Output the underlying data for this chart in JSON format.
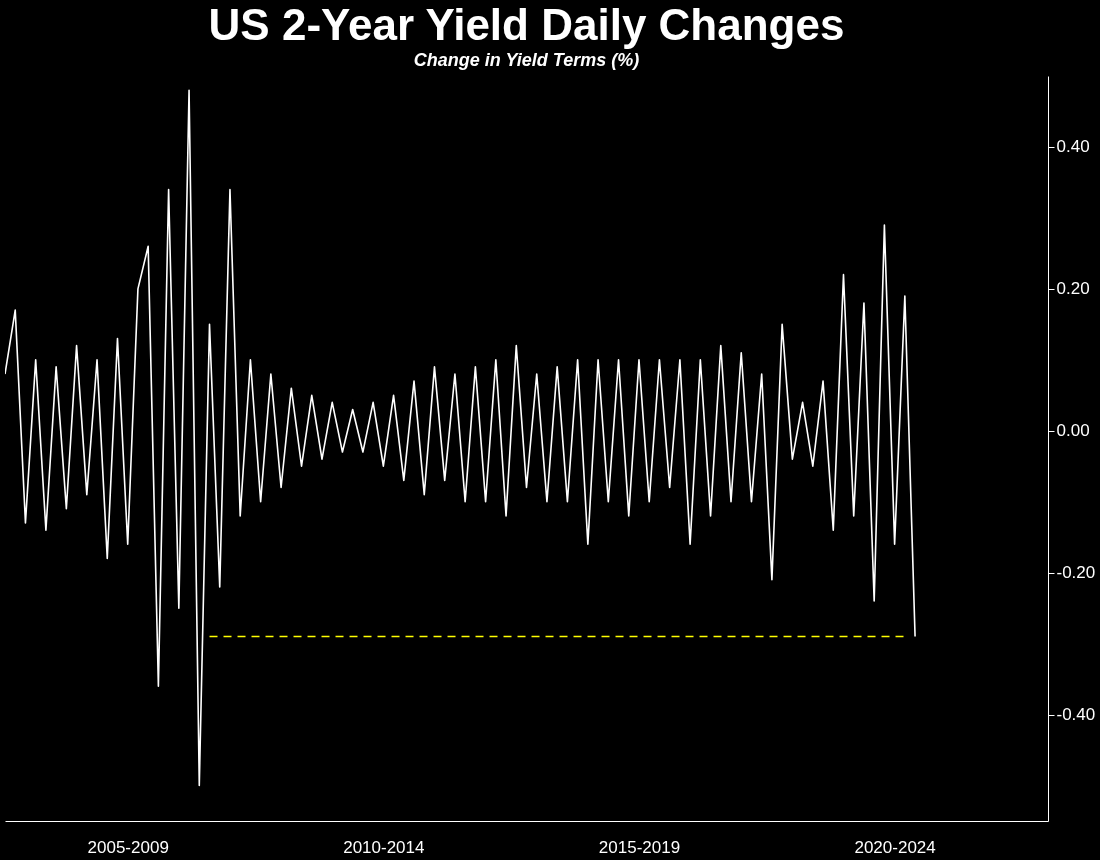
{
  "chart_data": {
    "type": "line",
    "title": "US 2-Year Yield Daily Changes",
    "subtitle": "Change in Yield Terms (%)",
    "categories": [
      null,
      null,
      null,
      null,
      null,
      null,
      null,
      null,
      null,
      null,
      null,
      null,
      "2005-2009",
      null,
      null,
      null,
      null,
      null,
      null,
      null,
      null,
      null,
      null,
      null,
      null,
      null,
      null,
      null,
      null,
      null,
      null,
      null,
      null,
      null,
      null,
      null,
      null,
      "2010-2014",
      null,
      null,
      null,
      null,
      null,
      null,
      null,
      null,
      null,
      null,
      null,
      null,
      null,
      null,
      null,
      null,
      null,
      null,
      null,
      null,
      null,
      null,
      null,
      null,
      "2015-2019",
      null,
      null,
      null,
      null,
      null,
      null,
      null,
      null,
      null,
      null,
      null,
      null,
      null,
      null,
      null,
      null,
      null,
      null,
      null,
      null,
      null,
      null,
      null,
      null,
      "2020-2024",
      null,
      null,
      null,
      null,
      null,
      null,
      null,
      null,
      null,
      null,
      null,
      null,
      null,
      null,
      null
    ],
    "ylim": [
      -0.55,
      0.5
    ],
    "yticks": [
      {
        "value": 0.4,
        "label": "0.40"
      },
      {
        "value": 0.2,
        "label": "0.20"
      },
      {
        "value": 0,
        "label": "0.00"
      },
      {
        "value": -0.2,
        "label": "-0.20"
      },
      {
        "value": -0.4,
        "label": "-0.40"
      }
    ],
    "grid": false,
    "series": [
      {
        "color": "#ffffff",
        "line_style": "solid",
        "values": [
          0.08,
          0.17,
          -0.13,
          0.1,
          -0.14,
          0.09,
          -0.11,
          0.12,
          -0.09,
          0.1,
          -0.18,
          0.13,
          -0.16,
          0.2,
          0.26,
          -0.36,
          0.34,
          -0.25,
          0.48,
          -0.5,
          0.15,
          -0.22,
          0.34,
          -0.12,
          0.1,
          -0.1,
          0.08,
          -0.08,
          0.06,
          -0.05,
          0.05,
          -0.04,
          0.04,
          -0.03,
          0.03,
          -0.03,
          0.04,
          -0.05,
          0.05,
          -0.07,
          0.07,
          -0.09,
          0.09,
          -0.07,
          0.08,
          -0.1,
          0.09,
          -0.1,
          0.1,
          -0.12,
          0.12,
          -0.08,
          0.08,
          -0.1,
          0.09,
          -0.1,
          0.1,
          -0.16,
          0.1,
          -0.1,
          0.1,
          -0.12,
          0.1,
          -0.1,
          0.1,
          -0.08,
          0.1,
          -0.16,
          0.1,
          -0.12,
          0.12,
          -0.1,
          0.11,
          -0.1,
          0.08,
          -0.21,
          0.15,
          -0.04,
          0.04,
          -0.05,
          0.07,
          -0.14,
          0.22,
          -0.12,
          0.18,
          -0.24,
          0.29,
          -0.16,
          0.19,
          -0.29,
          null,
          null,
          null,
          null,
          null,
          null,
          null,
          null,
          null,
          null,
          null,
          null,
          null
        ]
      },
      {
        "color": "#ffff00",
        "line_style": "dashed",
        "values": [
          null,
          null,
          null,
          null,
          null,
          null,
          null,
          null,
          null,
          null,
          null,
          null,
          null,
          null,
          null,
          null,
          null,
          null,
          null,
          null,
          -0.29,
          -0.29,
          -0.29,
          -0.29,
          -0.29,
          -0.29,
          -0.29,
          -0.29,
          -0.29,
          -0.29,
          -0.29,
          -0.29,
          -0.29,
          -0.29,
          -0.29,
          -0.29,
          -0.29,
          -0.29,
          -0.29,
          -0.29,
          -0.29,
          -0.29,
          -0.29,
          -0.29,
          -0.29,
          -0.29,
          -0.29,
          -0.29,
          -0.29,
          -0.29,
          -0.29,
          -0.29,
          -0.29,
          -0.29,
          -0.29,
          -0.29,
          -0.29,
          -0.29,
          -0.29,
          -0.29,
          -0.29,
          -0.29,
          -0.29,
          -0.29,
          -0.29,
          -0.29,
          -0.29,
          -0.29,
          -0.29,
          -0.29,
          -0.29,
          -0.29,
          -0.29,
          -0.29,
          -0.29,
          -0.29,
          -0.29,
          -0.29,
          -0.29,
          -0.29,
          -0.29,
          -0.29,
          -0.29,
          -0.29,
          -0.29,
          -0.29,
          -0.29,
          -0.29,
          -0.29,
          null,
          null,
          null,
          null,
          null,
          null,
          null,
          null,
          null,
          null,
          null,
          null,
          null,
          null
        ]
      }
    ]
  }
}
